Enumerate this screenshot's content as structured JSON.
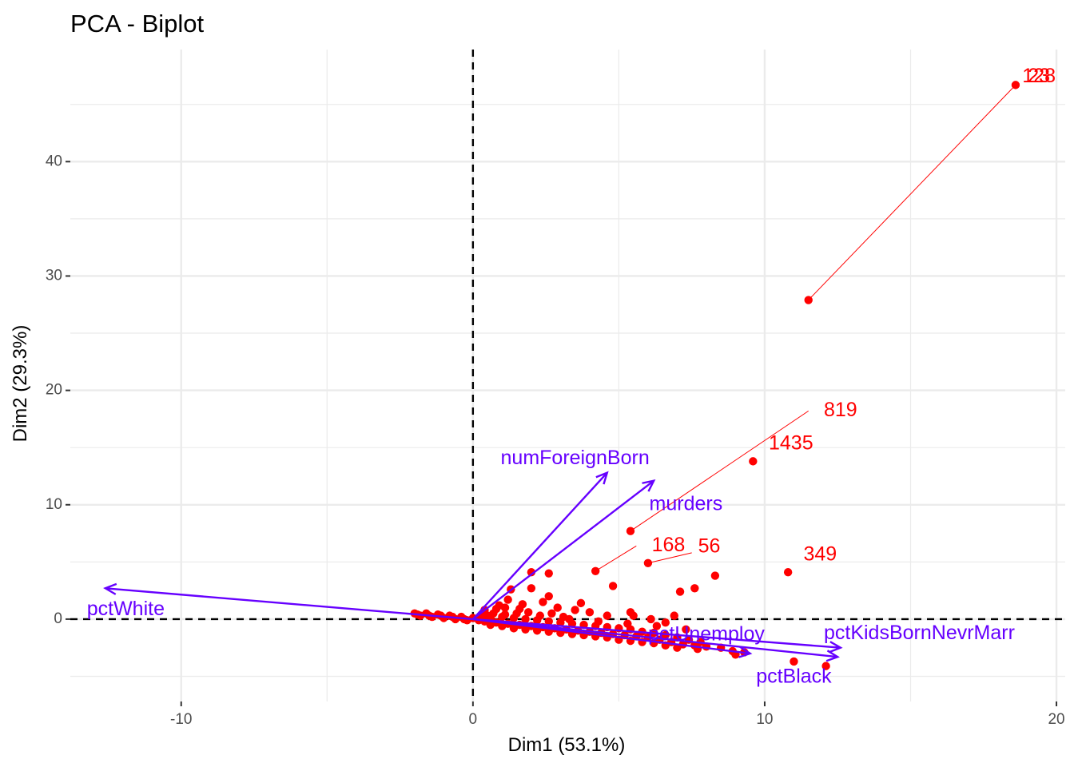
{
  "chart_data": {
    "type": "scatter",
    "subtype": "pca-biplot",
    "title": "PCA - Biplot",
    "xlabel": "Dim1 (53.1%)",
    "ylabel": "Dim2 (29.3%)",
    "xlim": [
      -13.8,
      20.3
    ],
    "ylim": [
      -7.2,
      49.8
    ],
    "x_ticks": [
      -10,
      0,
      10,
      20
    ],
    "y_ticks": [
      0,
      10,
      20,
      30,
      40
    ],
    "x_tick_labels": [
      "-10",
      "0",
      "10",
      "20"
    ],
    "y_tick_labels": [
      "0",
      "10",
      "20",
      "30",
      "40"
    ],
    "grid": true,
    "reference_lines": {
      "x": 0,
      "y": 0,
      "style": "dashed"
    },
    "colors": {
      "individuals": "#ff0000",
      "variables": "#6600ff",
      "grid": "#ebebeb",
      "reference": "#000000"
    },
    "variables": [
      {
        "name": "pctWhite",
        "x": -12.6,
        "y": 2.7,
        "label_x": -11.9,
        "label_y": 0.8
      },
      {
        "name": "numForeignBorn",
        "x": 4.6,
        "y": 12.8,
        "label_x": 3.5,
        "label_y": 14.0
      },
      {
        "name": "murders",
        "x": 6.2,
        "y": 12.1,
        "label_x": 7.3,
        "label_y": 10.0
      },
      {
        "name": "pctUnemploy",
        "x": 9.5,
        "y": -3.0,
        "label_x": 8.0,
        "label_y": -1.4
      },
      {
        "name": "pctKidsBornNevrMarr",
        "x": 12.5,
        "y": -3.3,
        "label_x": 15.3,
        "label_y": -1.3
      },
      {
        "name": "pctBlack",
        "x": 12.6,
        "y": -2.5,
        "label_x": 11.0,
        "label_y": -5.1
      }
    ],
    "labeled_points": [
      {
        "label": "128",
        "x": 18.6,
        "y": 46.7,
        "label_x": 19.4,
        "label_y": 47.4
      },
      {
        "label": "23",
        "x": 18.6,
        "y": 46.7,
        "label_x": 19.4,
        "label_y": 47.4
      },
      {
        "label": "819",
        "x": 5.4,
        "y": 7.7,
        "label_x": 12.6,
        "label_y": 18.2
      },
      {
        "label": "1435",
        "x": 9.6,
        "y": 13.8,
        "label_x": 10.9,
        "label_y": 15.3
      },
      {
        "label": "168",
        "x": 4.2,
        "y": 4.2,
        "label_x": 6.7,
        "label_y": 6.4
      },
      {
        "label": "56",
        "x": 6.0,
        "y": 4.9,
        "label_x": 8.1,
        "label_y": 6.3
      },
      {
        "label": "349",
        "x": 10.8,
        "y": 4.1,
        "label_x": 11.9,
        "label_y": 5.6
      }
    ],
    "connector_lines": [
      {
        "from": [
          11.5,
          27.9
        ],
        "to": [
          18.6,
          46.7
        ]
      },
      {
        "from": [
          5.4,
          7.7
        ],
        "to": [
          11.5,
          18.2
        ]
      },
      {
        "from": [
          4.2,
          4.2
        ],
        "to": [
          5.6,
          6.4
        ]
      },
      {
        "from": [
          6.0,
          4.9
        ],
        "to": [
          7.5,
          5.8
        ]
      }
    ],
    "points": [
      [
        11.5,
        27.9
      ],
      [
        9.6,
        13.8
      ],
      [
        5.4,
        7.7
      ],
      [
        4.2,
        4.2
      ],
      [
        6.0,
        4.9
      ],
      [
        10.8,
        4.1
      ],
      [
        18.6,
        46.7
      ],
      [
        8.3,
        3.8
      ],
      [
        7.6,
        2.7
      ],
      [
        7.1,
        2.4
      ],
      [
        4.8,
        2.9
      ],
      [
        2.6,
        4.0
      ],
      [
        2.0,
        4.1
      ],
      [
        2.6,
        2.0
      ],
      [
        2.0,
        2.7
      ],
      [
        1.3,
        2.6
      ],
      [
        2.4,
        1.5
      ],
      [
        3.7,
        1.4
      ],
      [
        4.0,
        0.6
      ],
      [
        5.4,
        0.6
      ],
      [
        5.5,
        0.3
      ],
      [
        6.9,
        0.3
      ],
      [
        1.2,
        1.7
      ],
      [
        0.9,
        1.2
      ],
      [
        1.6,
        0.9
      ],
      [
        0.4,
        0.8
      ],
      [
        0.7,
        0.5
      ],
      [
        1.1,
        0.4
      ],
      [
        1.9,
        0.6
      ],
      [
        2.7,
        0.5
      ],
      [
        3.1,
        0.2
      ],
      [
        -2.0,
        0.5
      ],
      [
        -1.6,
        0.5
      ],
      [
        -1.2,
        0.4
      ],
      [
        -0.8,
        0.3
      ],
      [
        -0.4,
        0.2
      ],
      [
        0.0,
        0.1
      ],
      [
        -1.8,
        0.3
      ],
      [
        -1.4,
        0.2
      ],
      [
        -1.0,
        0.1
      ],
      [
        -0.6,
        0.0
      ],
      [
        -0.2,
        -0.1
      ],
      [
        0.4,
        -0.2
      ],
      [
        0.8,
        -0.3
      ],
      [
        1.2,
        -0.4
      ],
      [
        1.6,
        -0.5
      ],
      [
        2.0,
        -0.6
      ],
      [
        2.4,
        -0.7
      ],
      [
        2.8,
        -0.8
      ],
      [
        3.2,
        -0.9
      ],
      [
        3.6,
        -1.0
      ],
      [
        4.0,
        -1.1
      ],
      [
        4.4,
        -1.2
      ],
      [
        4.8,
        -1.3
      ],
      [
        5.2,
        -1.4
      ],
      [
        5.6,
        -1.5
      ],
      [
        6.0,
        -1.6
      ],
      [
        6.4,
        -1.8
      ],
      [
        6.8,
        -2.0
      ],
      [
        7.2,
        -2.2
      ],
      [
        7.6,
        -2.3
      ],
      [
        8.0,
        -2.4
      ],
      [
        8.5,
        -2.5
      ],
      [
        8.9,
        -2.8
      ],
      [
        9.3,
        -2.9
      ],
      [
        1.0,
        0.2
      ],
      [
        1.4,
        0.1
      ],
      [
        1.8,
        0.0
      ],
      [
        2.2,
        -0.1
      ],
      [
        2.6,
        -0.2
      ],
      [
        3.0,
        -0.3
      ],
      [
        3.4,
        -0.4
      ],
      [
        3.8,
        -0.5
      ],
      [
        4.2,
        -0.6
      ],
      [
        4.6,
        -0.7
      ],
      [
        5.0,
        -0.8
      ],
      [
        5.4,
        -0.9
      ],
      [
        5.8,
        -1.1
      ],
      [
        6.2,
        -1.2
      ],
      [
        6.6,
        -1.4
      ],
      [
        7.0,
        -1.6
      ],
      [
        7.4,
        -1.8
      ],
      [
        7.8,
        -2.0
      ],
      [
        0.6,
        -0.5
      ],
      [
        1.0,
        -0.6
      ],
      [
        1.4,
        -0.8
      ],
      [
        1.8,
        -0.9
      ],
      [
        2.2,
        -1.0
      ],
      [
        2.6,
        -1.1
      ],
      [
        3.0,
        -1.2
      ],
      [
        3.4,
        -1.3
      ],
      [
        3.8,
        -1.4
      ],
      [
        4.2,
        -1.5
      ],
      [
        4.6,
        -1.6
      ],
      [
        5.0,
        -1.8
      ],
      [
        5.4,
        -1.9
      ],
      [
        5.8,
        -2.0
      ],
      [
        6.2,
        -2.1
      ],
      [
        6.6,
        -2.3
      ],
      [
        7.0,
        -2.5
      ],
      [
        7.7,
        -2.6
      ],
      [
        11.0,
        -3.7
      ],
      [
        12.1,
        -4.1
      ],
      [
        9.0,
        -3.1
      ],
      [
        -1.9,
        0.4
      ],
      [
        -1.5,
        0.3
      ],
      [
        -1.1,
        0.3
      ],
      [
        -0.7,
        0.2
      ],
      [
        -0.3,
        0.0
      ],
      [
        0.2,
        -0.1
      ],
      [
        0.5,
        0.3
      ],
      [
        1.5,
        0.5
      ],
      [
        2.3,
        0.3
      ],
      [
        3.3,
        0.0
      ],
      [
        4.3,
        -0.2
      ],
      [
        5.3,
        -0.4
      ],
      [
        6.3,
        -0.6
      ],
      [
        7.3,
        -0.9
      ],
      [
        0.8,
        0.9
      ],
      [
        1.7,
        1.3
      ],
      [
        2.9,
        1.0
      ],
      [
        3.5,
        0.8
      ],
      [
        4.6,
        0.3
      ],
      [
        6.1,
        0.0
      ],
      [
        6.6,
        -0.3
      ],
      [
        1.1,
        1.0
      ],
      [
        0.3,
        0.4
      ],
      [
        0.6,
        0.1
      ]
    ]
  }
}
